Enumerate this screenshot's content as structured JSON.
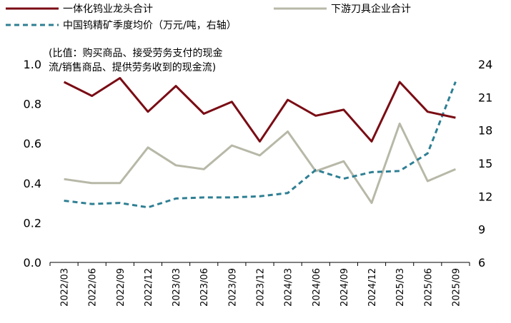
{
  "chart_data": {
    "type": "line",
    "annotation": [
      "(比值：购买商品、接受劳务支付的现金",
      "流/销售商品、提供劳务收到的现金流)"
    ],
    "categories": [
      "2022/03",
      "2022/06",
      "2022/09",
      "2022/12",
      "2023/03",
      "2023/06",
      "2023/09",
      "2023/12",
      "2024/03",
      "2024/06",
      "2024/09",
      "2024/12",
      "2025/03",
      "2025/06",
      "2025/09"
    ],
    "y_left": {
      "range": [
        0,
        1.0
      ],
      "ticks": [
        "0.0",
        "0.2",
        "0.4",
        "0.6",
        "0.8",
        "1.0"
      ]
    },
    "y_right": {
      "range": [
        6,
        24
      ],
      "ticks": [
        "6",
        "9",
        "12",
        "15",
        "18",
        "21",
        "24"
      ]
    },
    "grid": false,
    "legend_position": "top",
    "series": [
      {
        "name": "一体化钨业龙头合计",
        "axis": "left",
        "color": "#7a0c14",
        "style": "solid",
        "values": [
          0.91,
          0.84,
          0.93,
          0.76,
          0.89,
          0.75,
          0.81,
          0.61,
          0.82,
          0.74,
          0.77,
          0.61,
          0.91,
          0.76,
          0.73
        ]
      },
      {
        "name": "下游刀具企业合计",
        "axis": "left",
        "color": "#b8b8a8",
        "style": "solid",
        "values": [
          0.42,
          0.4,
          0.4,
          0.58,
          0.49,
          0.47,
          0.59,
          0.54,
          0.66,
          0.46,
          0.51,
          0.3,
          0.7,
          0.41,
          0.47
        ]
      },
      {
        "name": "中国钨精矿季度均价（万元/吨，右轴）",
        "axis": "right",
        "color": "#2e7f93",
        "style": "dashed",
        "values": [
          11.6,
          11.3,
          11.4,
          11.0,
          11.8,
          11.9,
          11.9,
          12.0,
          12.3,
          14.4,
          13.6,
          14.2,
          14.3,
          15.9,
          22.4
        ]
      }
    ]
  }
}
